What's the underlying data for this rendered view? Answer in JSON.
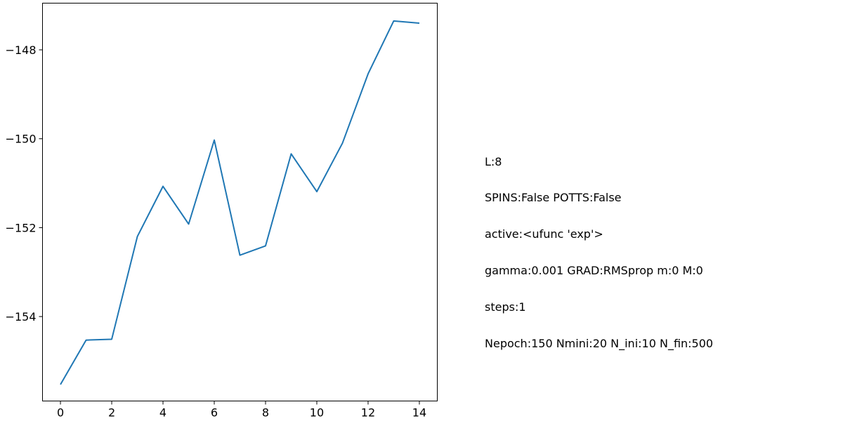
{
  "chart_data": {
    "type": "line",
    "x": [
      0,
      1,
      2,
      3,
      4,
      5,
      6,
      7,
      8,
      9,
      10,
      11,
      12,
      13,
      14
    ],
    "series": [
      {
        "values": [
          -155.53,
          -154.53,
          -154.51,
          -152.2,
          -151.07,
          -151.92,
          -150.03,
          -152.62,
          -152.41,
          -150.34,
          -151.19,
          -150.1,
          -148.54,
          -147.35,
          -147.4
        ]
      }
    ],
    "xlim": [
      -0.7,
      14.7
    ],
    "ylim": [
      -155.9,
      -146.95
    ],
    "xticks": [
      0,
      2,
      4,
      6,
      8,
      10,
      12,
      14
    ],
    "yticks": [
      -154,
      -152,
      -150,
      -148
    ],
    "xtick_labels": [
      "0",
      "2",
      "4",
      "6",
      "8",
      "10",
      "12",
      "14"
    ],
    "ytick_labels": [
      "−154",
      "−152",
      "−150",
      "−148"
    ],
    "grid": false,
    "line_color": "#1f77b4",
    "title": "",
    "xlabel": "",
    "ylabel": ""
  },
  "annotation": {
    "lines": [
      "L:8",
      "SPINS:False POTTS:False",
      "active:<ufunc 'exp'>",
      "gamma:0.001 GRAD:RMSprop m:0 M:0",
      "steps:1",
      "Nepoch:150 Nmini:20 N_ini:10 N_fin:500"
    ]
  }
}
